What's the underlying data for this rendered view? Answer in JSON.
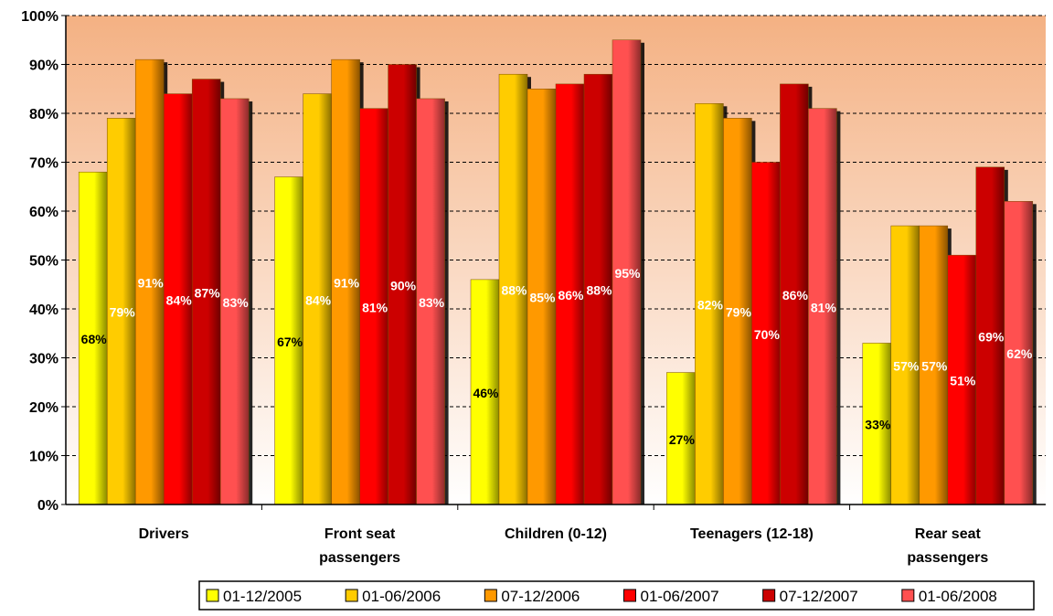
{
  "chart_data": {
    "type": "bar",
    "categories": [
      "Drivers",
      "Front seat passengers",
      "Children (0-12)",
      "Teenagers (12-18)",
      "Rear seat passengers"
    ],
    "series": [
      {
        "name": "01-12/2005",
        "values": [
          68,
          67,
          46,
          27,
          33
        ],
        "labels": [
          "68%",
          "67%",
          "46%",
          "27%",
          "33%"
        ],
        "color": "#ffff00",
        "label_color": "#000000"
      },
      {
        "name": "01-06/2006",
        "values": [
          79,
          84,
          88,
          82,
          57
        ],
        "labels": [
          "79%",
          "84%",
          "88%",
          "82%",
          "57%"
        ],
        "color": "#ffcc00",
        "label_color": "#ffffff"
      },
      {
        "name": "07-12/2006",
        "values": [
          91,
          91,
          85,
          79,
          57
        ],
        "labels": [
          "91%",
          "91%",
          "85%",
          "79%",
          "57%"
        ],
        "color": "#ff9900",
        "label_color": "#ffffff"
      },
      {
        "name": "01-06/2007",
        "values": [
          84,
          81,
          86,
          70,
          51
        ],
        "labels": [
          "84%",
          "81%",
          "86%",
          "70%",
          "51%"
        ],
        "color": "#ff0000",
        "label_color": "#ffffff"
      },
      {
        "name": "07-12/2007",
        "values": [
          87,
          90,
          88,
          86,
          69
        ],
        "labels": [
          "87%",
          "90%",
          "88%",
          "86%",
          "69%"
        ],
        "color": "#cc0000",
        "label_color": "#ffffff"
      },
      {
        "name": "01-06/2008",
        "values": [
          83,
          83,
          95,
          81,
          62
        ],
        "labels": [
          "83%",
          "83%",
          "95%",
          "81%",
          "62%"
        ],
        "color": "#ff5050",
        "label_color": "#ffffff"
      }
    ],
    "y_ticks": [
      "0%",
      "10%",
      "20%",
      "30%",
      "40%",
      "50%",
      "60%",
      "70%",
      "80%",
      "90%",
      "100%"
    ],
    "ylim": [
      0,
      100
    ],
    "grid": true,
    "legend_position": "bottom",
    "background": {
      "top": "#f4b183",
      "bottom": "#ffffff"
    }
  }
}
